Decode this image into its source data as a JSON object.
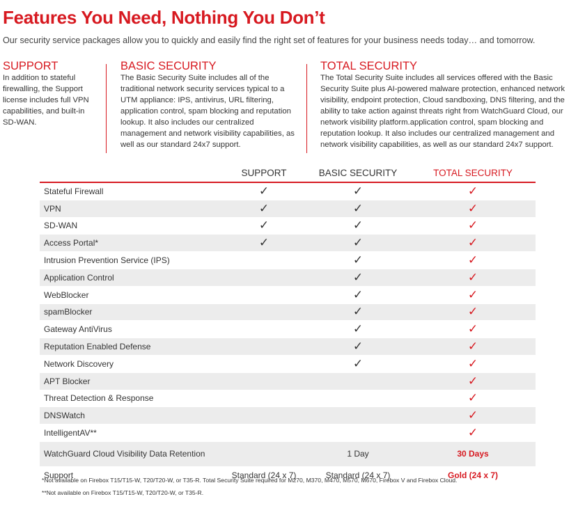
{
  "header": {
    "title": "Features You Need, Nothing You Don’t",
    "subtitle": "Our security service packages allow you to quickly and easily find the right set of features for your business needs today… and tomorrow."
  },
  "descriptions": [
    {
      "heading": "SUPPORT",
      "body": "In addition to stateful firewalling, the Support license includes full VPN capabilities, and built-in SD-WAN."
    },
    {
      "heading": "BASIC SECURITY",
      "body": "The Basic Security Suite includes all of the traditional network security services typical to a UTM appliance: IPS, antivirus, URL filtering, application control, spam blocking and reputation lookup. It also includes our centralized management and network visibility capabilities, as well as our standard 24x7 support."
    },
    {
      "heading": "TOTAL SECURITY",
      "body": "The Total Security Suite includes all services offered with the Basic Security Suite plus AI-powered malware protection, enhanced network visibility, endpoint protection, Cloud sandboxing, DNS filtering, and the ability to take action against threats right from WatchGuard Cloud, our network visibility platform.application control, spam blocking and reputation lookup. It also includes our centralized management and network visibility capabilities, as well as our standard 24x7 support."
    }
  ],
  "table": {
    "columns": [
      "SUPPORT",
      "BASIC SECURITY",
      "TOTAL SECURITY"
    ],
    "rows": [
      [
        "Stateful Firewall",
        "✓",
        "✓",
        "✓"
      ],
      [
        "VPN",
        "✓",
        "✓",
        "✓"
      ],
      [
        "SD-WAN",
        "✓",
        "✓",
        "✓"
      ],
      [
        "Access Portal*",
        "✓",
        "✓",
        "✓"
      ],
      [
        "Intrusion Prevention Service (IPS)",
        null,
        "✓",
        "✓"
      ],
      [
        "Application Control",
        null,
        "✓",
        "✓"
      ],
      [
        "WebBlocker",
        null,
        "✓",
        "✓"
      ],
      [
        "spamBlocker",
        null,
        "✓",
        "✓"
      ],
      [
        "Gateway AntiVirus",
        null,
        "✓",
        "✓"
      ],
      [
        "Reputation Enabled Defense",
        null,
        "✓",
        "✓"
      ],
      [
        "Network Discovery",
        null,
        "✓",
        "✓"
      ],
      [
        "APT Blocker",
        null,
        null,
        "✓"
      ],
      [
        "Threat Detection & Response",
        null,
        null,
        "✓"
      ],
      [
        "DNSWatch",
        null,
        null,
        "✓"
      ],
      [
        "IntelligentAV**",
        null,
        null,
        "✓"
      ],
      [
        "WatchGuard Cloud Visibility Data Retention",
        null,
        "1 Day",
        "30 Days"
      ],
      [
        "Support",
        "Standard (24 x 7)",
        "Standard (24 x 7)",
        "Gold (24 x 7)"
      ]
    ]
  },
  "footnotes": [
    "*Not available on Firebox T15/T15-W, T20/T20-W, or T35-R. Total Security Suite required for M270, M370, M470, M570, M670, Firebox V and Firebox Cloud.",
    "**Not available on Firebox T15/T15-W, T20/T20-W, or T35-R."
  ]
}
